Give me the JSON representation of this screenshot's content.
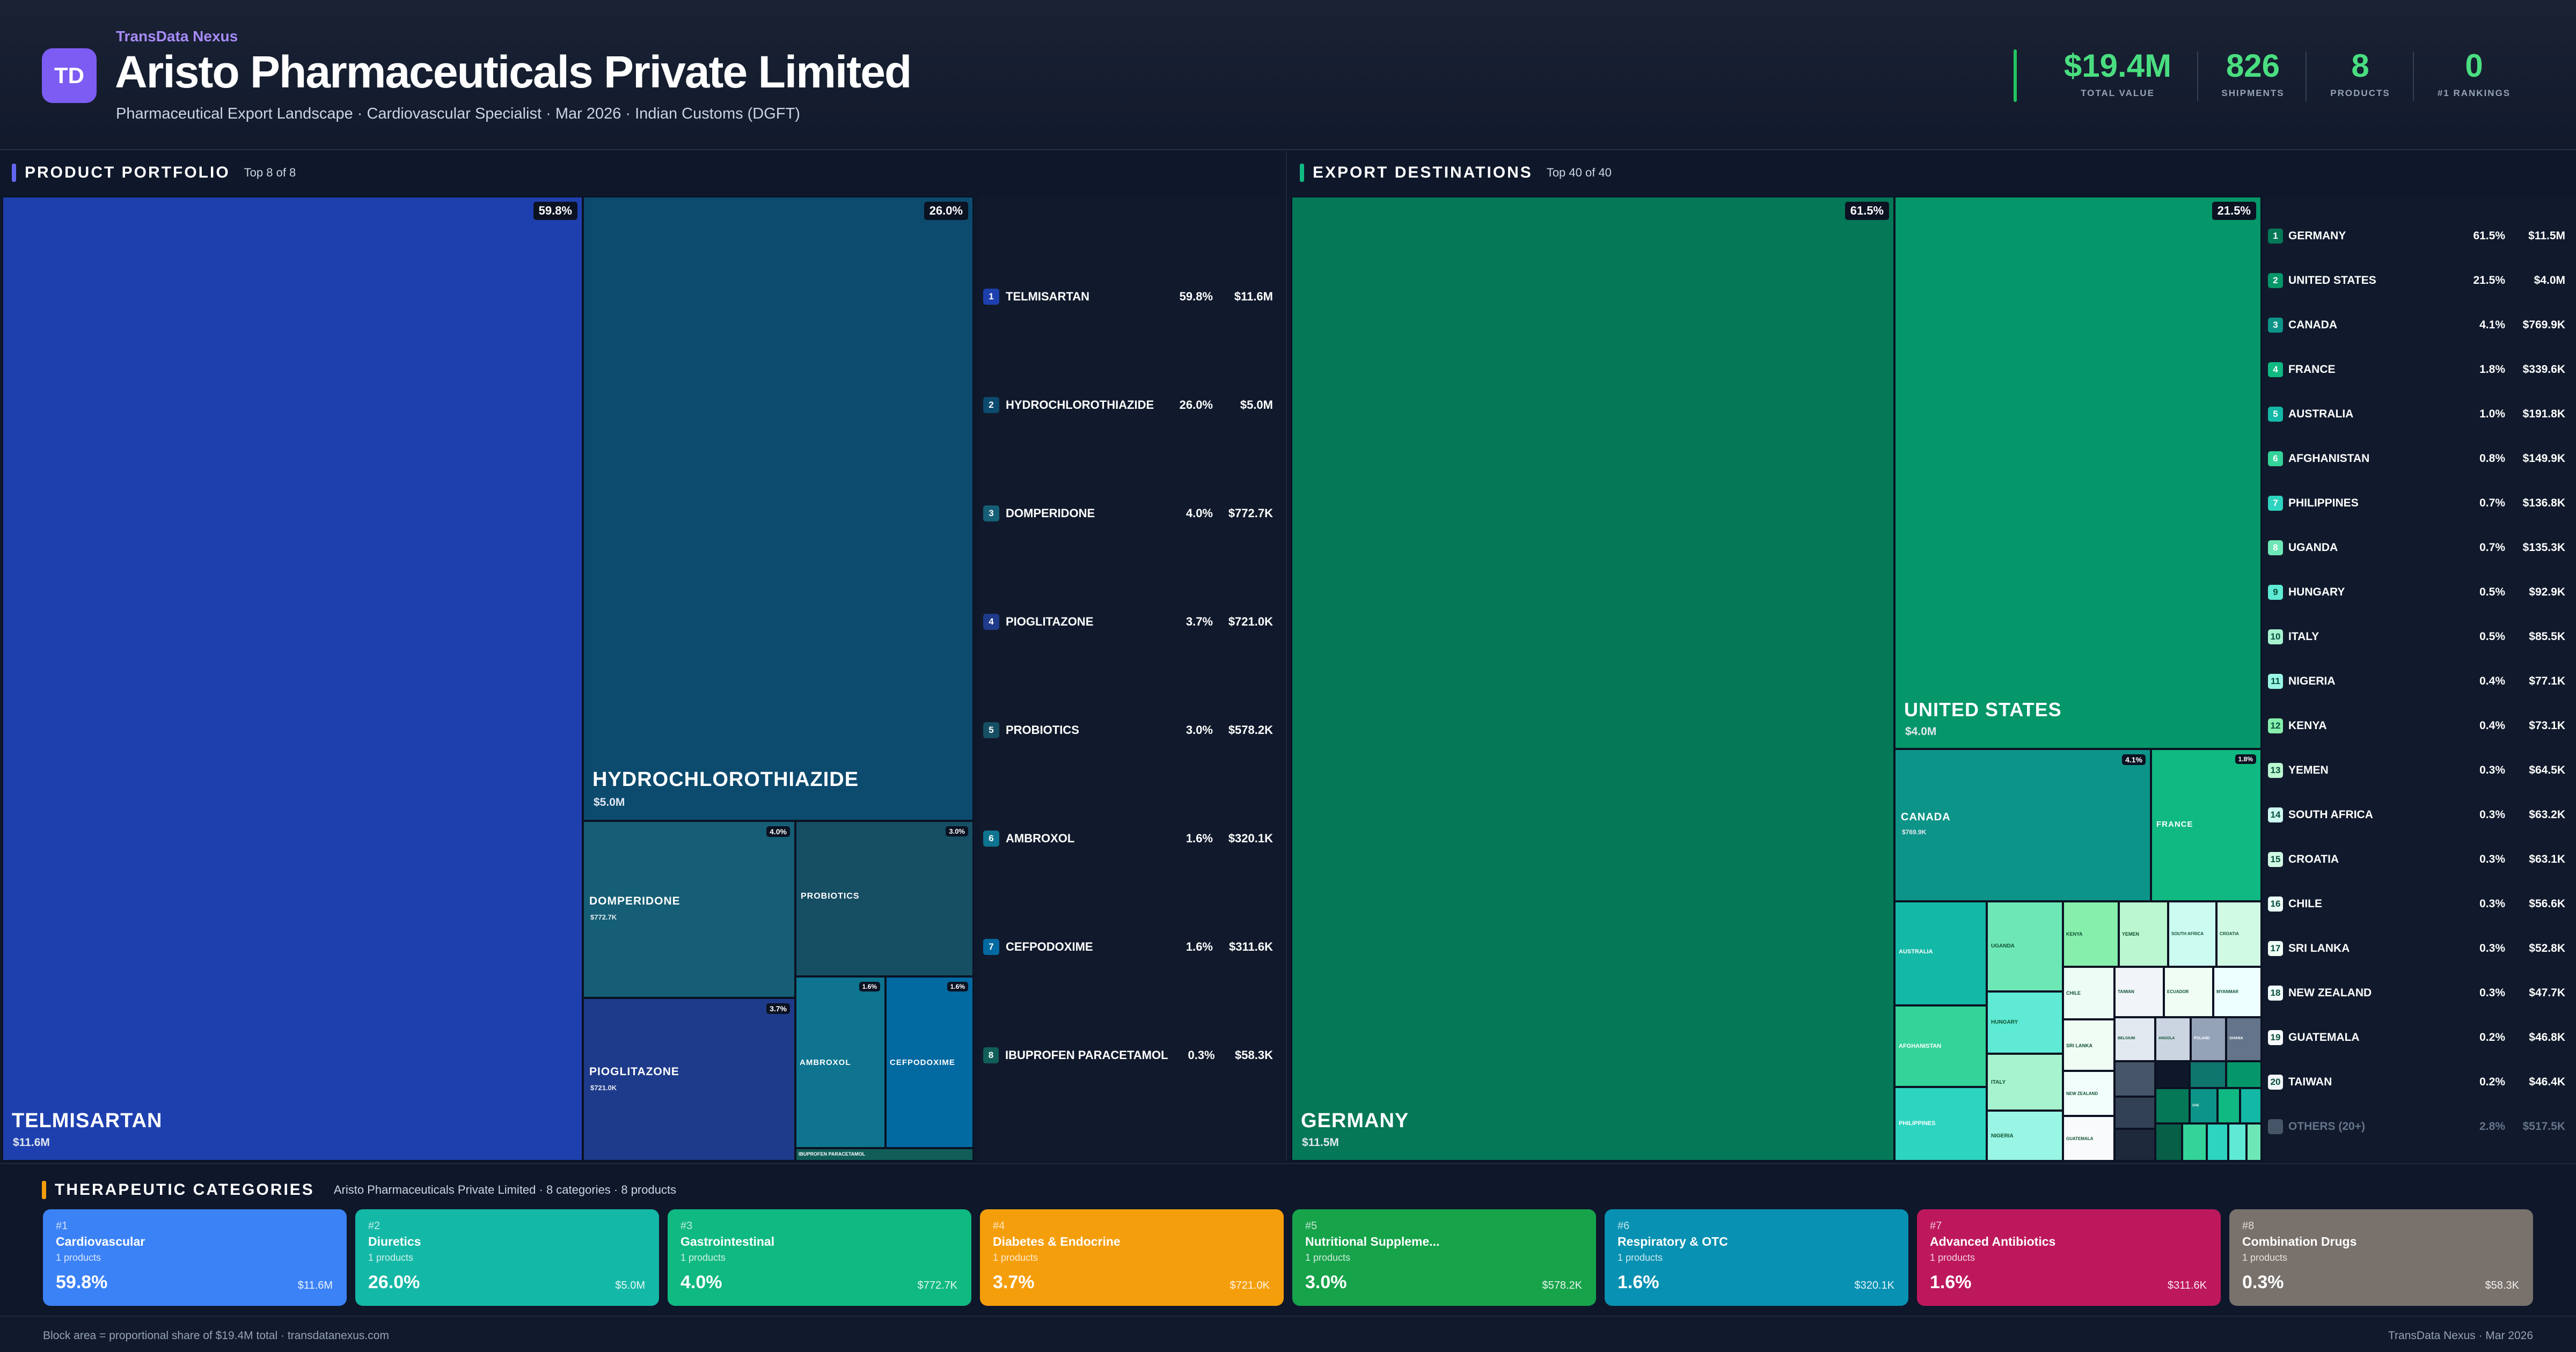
{
  "header": {
    "logo": "TD",
    "brand": "TransData Nexus",
    "title": "Aristo Pharmaceuticals Private Limited",
    "subtitle": "Pharmaceutical Export Landscape · Cardiovascular Specialist · Mar 2026 · Indian Customs (DGFT)"
  },
  "kpis": [
    {
      "value": "$19.4M",
      "label": "TOTAL VALUE"
    },
    {
      "value": "826",
      "label": "SHIPMENTS"
    },
    {
      "value": "8",
      "label": "PRODUCTS"
    },
    {
      "value": "0",
      "label": "#1 RANKINGS"
    }
  ],
  "products": {
    "title": "PRODUCT PORTFOLIO",
    "subtitle": "Top 8 of 8",
    "items": [
      {
        "rank": "1",
        "name": "TELMISARTAN",
        "pct": "59.8%",
        "value": "$11.6M",
        "color": "#1e40af"
      },
      {
        "rank": "2",
        "name": "HYDROCHLOROTHIAZIDE",
        "pct": "26.0%",
        "value": "$5.0M",
        "color": "#0c4a6e"
      },
      {
        "rank": "3",
        "name": "DOMPERIDONE",
        "pct": "4.0%",
        "value": "$772.7K",
        "color": "#155e75"
      },
      {
        "rank": "4",
        "name": "PIOGLITAZONE",
        "pct": "3.7%",
        "value": "$721.0K",
        "color": "#1e3a8a"
      },
      {
        "rank": "5",
        "name": "PROBIOTICS",
        "pct": "3.0%",
        "value": "$578.2K",
        "color": "#164e63"
      },
      {
        "rank": "6",
        "name": "AMBROXOL",
        "pct": "1.6%",
        "value": "$320.1K",
        "color": "#0e7490"
      },
      {
        "rank": "7",
        "name": "CEFPODOXIME",
        "pct": "1.6%",
        "value": "$311.6K",
        "color": "#0369a1"
      },
      {
        "rank": "8",
        "name": "IBUPROFEN PARACETAMOL",
        "pct": "0.3%",
        "value": "$58.3K",
        "color": "#115e59"
      }
    ]
  },
  "destinations": {
    "title": "EXPORT DESTINATIONS",
    "subtitle": "Top 40 of 40",
    "items": [
      {
        "rank": "1",
        "name": "GERMANY",
        "pct": "61.5%",
        "value": "$11.5M"
      },
      {
        "rank": "2",
        "name": "UNITED STATES",
        "pct": "21.5%",
        "value": "$4.0M"
      },
      {
        "rank": "3",
        "name": "CANADA",
        "pct": "4.1%",
        "value": "$769.9K"
      },
      {
        "rank": "4",
        "name": "FRANCE",
        "pct": "1.8%",
        "value": "$339.6K"
      },
      {
        "rank": "5",
        "name": "AUSTRALIA",
        "pct": "1.0%",
        "value": "$191.8K"
      },
      {
        "rank": "6",
        "name": "AFGHANISTAN",
        "pct": "0.8%",
        "value": "$149.9K"
      },
      {
        "rank": "7",
        "name": "PHILIPPINES",
        "pct": "0.7%",
        "value": "$136.8K"
      },
      {
        "rank": "8",
        "name": "UGANDA",
        "pct": "0.7%",
        "value": "$135.3K"
      },
      {
        "rank": "9",
        "name": "HUNGARY",
        "pct": "0.5%",
        "value": "$92.9K"
      },
      {
        "rank": "10",
        "name": "ITALY",
        "pct": "0.5%",
        "value": "$85.5K"
      },
      {
        "rank": "11",
        "name": "NIGERIA",
        "pct": "0.4%",
        "value": "$77.1K"
      },
      {
        "rank": "12",
        "name": "KENYA",
        "pct": "0.4%",
        "value": "$73.1K"
      },
      {
        "rank": "13",
        "name": "YEMEN",
        "pct": "0.3%",
        "value": "$64.5K"
      },
      {
        "rank": "14",
        "name": "SOUTH AFRICA",
        "pct": "0.3%",
        "value": "$63.2K"
      },
      {
        "rank": "15",
        "name": "CROATIA",
        "pct": "0.3%",
        "value": "$63.1K"
      },
      {
        "rank": "16",
        "name": "CHILE",
        "pct": "0.3%",
        "value": "$56.6K"
      },
      {
        "rank": "17",
        "name": "SRI LANKA",
        "pct": "0.3%",
        "value": "$52.8K"
      },
      {
        "rank": "18",
        "name": "NEW ZEALAND",
        "pct": "0.3%",
        "value": "$47.7K"
      },
      {
        "rank": "19",
        "name": "GUATEMALA",
        "pct": "0.2%",
        "value": "$46.8K"
      },
      {
        "rank": "20",
        "name": "TAIWAN",
        "pct": "0.2%",
        "value": "$46.4K"
      }
    ],
    "others": {
      "name": "OTHERS (20+)",
      "pct": "2.8%",
      "value": "$517.5K"
    },
    "extra_block_labels": [
      "ECUADOR",
      "MYANMAR",
      "BELGIUM",
      "ANGOLA",
      "POLAND",
      "GHANA",
      "UAE"
    ]
  },
  "categories": {
    "title": "THERAPEUTIC CATEGORIES",
    "subtitle": "Aristo Pharmaceuticals Private Limited · 8 categories · 8 products",
    "items": [
      {
        "rank": "#1",
        "name": "Cardiovascular",
        "products": "1 products",
        "pct": "59.8%",
        "value": "$11.6M",
        "color": "#3b82f6"
      },
      {
        "rank": "#2",
        "name": "Diuretics",
        "products": "1 products",
        "pct": "26.0%",
        "value": "$5.0M",
        "color": "#14b8a6"
      },
      {
        "rank": "#3",
        "name": "Gastrointestinal",
        "products": "1 products",
        "pct": "4.0%",
        "value": "$772.7K",
        "color": "#10b981"
      },
      {
        "rank": "#4",
        "name": "Diabetes & Endocrine",
        "products": "1 products",
        "pct": "3.7%",
        "value": "$721.0K",
        "color": "#f59e0b"
      },
      {
        "rank": "#5",
        "name": "Nutritional Suppleme...",
        "products": "1 products",
        "pct": "3.0%",
        "value": "$578.2K",
        "color": "#16a34a"
      },
      {
        "rank": "#6",
        "name": "Respiratory & OTC",
        "products": "1 products",
        "pct": "1.6%",
        "value": "$320.1K",
        "color": "#0891b2"
      },
      {
        "rank": "#7",
        "name": "Advanced Antibiotics",
        "products": "1 products",
        "pct": "1.6%",
        "value": "$311.6K",
        "color": "#be185d"
      },
      {
        "rank": "#8",
        "name": "Combination Drugs",
        "products": "1 products",
        "pct": "0.3%",
        "value": "$58.3K",
        "color": "#78716c"
      }
    ]
  },
  "footer": {
    "left": "Block area = proportional share of $19.4M total · transdatanexus.com",
    "right": "TransData Nexus · Mar 2026"
  }
}
